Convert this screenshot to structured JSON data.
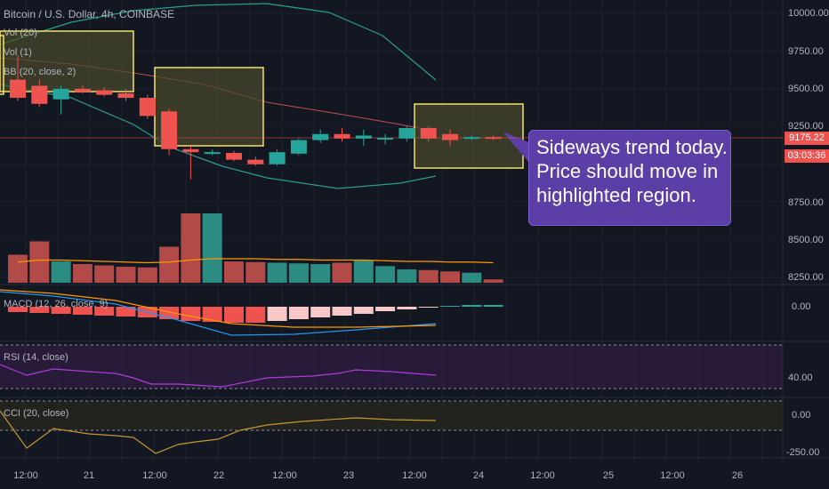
{
  "header": {
    "title": "Bitcoin / U.S. Dollar, 4h, COINBASE",
    "indicators": [
      "Vol (20)",
      "Vol (1)",
      "BB (20, close, 2)"
    ]
  },
  "panes": {
    "macd_label": "MACD (12, 26, close, 9)",
    "rsi_label": "RSI (14, close)",
    "cci_label": "CCI (20, close)"
  },
  "price_axis": {
    "main_ticks": [
      "10000.00",
      "9750.00",
      "9500.00",
      "9250.00",
      "8750.00",
      "8500.00",
      "8250.00"
    ],
    "current_price": "9175.22",
    "countdown": "03:03:36",
    "macd_tick": "0.00",
    "rsi_tick": "40.00",
    "cci_ticks": [
      "0.00",
      "-250.00"
    ]
  },
  "time_axis": [
    "12:00",
    "21",
    "12:00",
    "22",
    "12:00",
    "23",
    "12:00",
    "24",
    "12:00",
    "25",
    "12:00",
    "26"
  ],
  "annotation": {
    "lines": [
      "Sideways trend today.",
      "Price should move in",
      "highlighted region."
    ]
  },
  "colors": {
    "background": "#131722",
    "bull": "#26a69a",
    "bear": "#ef5350",
    "highlight_border": "#f5e26b",
    "highlight_fill": "#4a4a2a",
    "callout": "#5b3fa6",
    "bb_band": "#2a9d8f",
    "bb_basis": "#c0504d",
    "macd_line": "#2196f3",
    "signal_line": "#ff9800",
    "rsi_line": "#b03cd6",
    "cci_line": "#c8962e"
  },
  "chart_data": {
    "type": "candlestick",
    "symbol": "Bitcoin / U.S. Dollar",
    "interval": "4h",
    "exchange": "COINBASE",
    "ylim": [
      8200,
      10050
    ],
    "candles": [
      {
        "o": 9560,
        "h": 9720,
        "l": 9420,
        "c": 9440
      },
      {
        "o": 9520,
        "h": 9560,
        "l": 9380,
        "c": 9400
      },
      {
        "o": 9430,
        "h": 9520,
        "l": 9330,
        "c": 9500
      },
      {
        "o": 9500,
        "h": 9520,
        "l": 9470,
        "c": 9480
      },
      {
        "o": 9490,
        "h": 9510,
        "l": 9450,
        "c": 9460
      },
      {
        "o": 9470,
        "h": 9500,
        "l": 9420,
        "c": 9440
      },
      {
        "o": 9440,
        "h": 9460,
        "l": 9300,
        "c": 9320
      },
      {
        "o": 9350,
        "h": 9370,
        "l": 9060,
        "c": 9100
      },
      {
        "o": 9100,
        "h": 9120,
        "l": 8900,
        "c": 9080
      },
      {
        "o": 9080,
        "h": 9100,
        "l": 9060,
        "c": 9080
      },
      {
        "o": 9075,
        "h": 9090,
        "l": 9020,
        "c": 9030
      },
      {
        "o": 9030,
        "h": 9050,
        "l": 8990,
        "c": 9000
      },
      {
        "o": 9000,
        "h": 9100,
        "l": 8990,
        "c": 9080
      },
      {
        "o": 9070,
        "h": 9170,
        "l": 9060,
        "c": 9160
      },
      {
        "o": 9160,
        "h": 9230,
        "l": 9140,
        "c": 9200
      },
      {
        "o": 9200,
        "h": 9240,
        "l": 9150,
        "c": 9170
      },
      {
        "o": 9170,
        "h": 9230,
        "l": 9120,
        "c": 9190
      },
      {
        "o": 9170,
        "h": 9200,
        "l": 9130,
        "c": 9175
      },
      {
        "o": 9170,
        "h": 9250,
        "l": 9150,
        "c": 9240
      },
      {
        "o": 9240,
        "h": 9250,
        "l": 9150,
        "c": 9170
      },
      {
        "o": 9200,
        "h": 9230,
        "l": 9120,
        "c": 9160
      },
      {
        "o": 9170,
        "h": 9190,
        "l": 9160,
        "c": 9180
      },
      {
        "o": 9180,
        "h": 9190,
        "l": 9160,
        "c": 9175
      }
    ],
    "volume": {
      "values": [
        4.2,
        6.2,
        3.2,
        2.8,
        2.6,
        2.4,
        2.3,
        5.4,
        10.4,
        10.4,
        3.2,
        3.1,
        3.0,
        2.9,
        2.8,
        3.0,
        3.4,
        2.5,
        2.0,
        1.9,
        1.7,
        1.5,
        0.5
      ],
      "ma": [
        3.1,
        3.4,
        3.4,
        3.3,
        3.2,
        3.1,
        3.0,
        3.1,
        3.4,
        3.6,
        3.6,
        3.6,
        3.5,
        3.5,
        3.4,
        3.4,
        3.4,
        3.3,
        3.2,
        3.2,
        3.1,
        3.1,
        3.0
      ]
    }
  }
}
